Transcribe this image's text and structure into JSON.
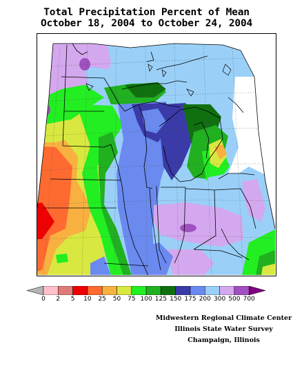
{
  "header": {
    "title_line1": "Total Precipitation Percent of Mean",
    "title_line2": "October 18, 2004 to October 24, 2004"
  },
  "legend": {
    "labels": [
      "0",
      "2",
      "5",
      "10",
      "25",
      "50",
      "75",
      "100",
      "125",
      "150",
      "175",
      "200",
      "300",
      "500",
      "700"
    ],
    "colors": {
      "lt0": "#b4b4b4",
      "c0_2": "#ffc0cb",
      "c2_5": "#e07a7a",
      "c5_10": "#ee0000",
      "c10_25": "#ff6a30",
      "c25_50": "#f8b040",
      "c50_75": "#d8e840",
      "c75_100": "#22ee22",
      "c100_125": "#20b020",
      "c125_150": "#107010",
      "c150_175": "#3a3aa8",
      "c175_200": "#6a8af0",
      "c200_300": "#9ad0f8",
      "c300_500": "#d4a8ee",
      "c500_700": "#a050c0",
      "gt700": "#800080"
    }
  },
  "credits": {
    "line1": "Midwestern Regional Climate Center",
    "line2": "Illinois State Water Survey",
    "line3": "Champaign, Illinois"
  }
}
